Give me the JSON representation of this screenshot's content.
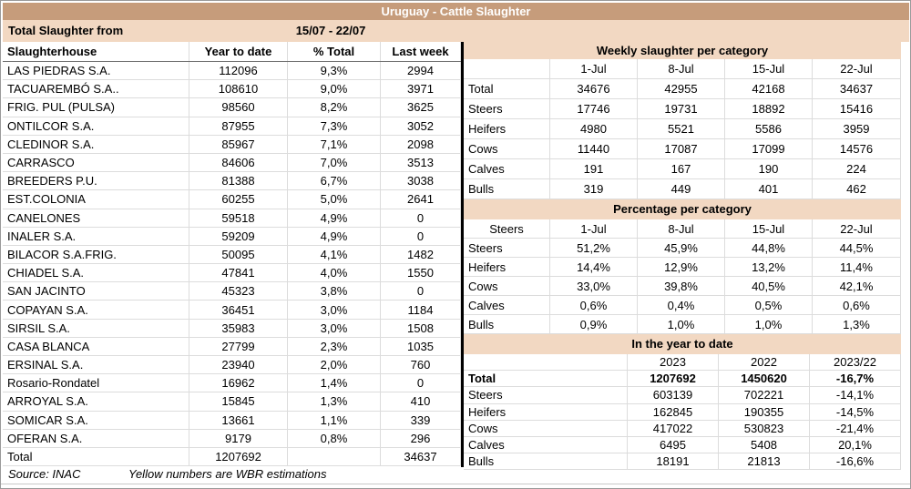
{
  "title": "Uruguay - Cattle Slaughter",
  "subheader": {
    "label": "Total Slaughter from",
    "range": "15/07 - 22/07"
  },
  "left_table": {
    "headers": [
      "Slaughterhouse",
      "Year to date",
      "% Total",
      "Last week"
    ],
    "rows": [
      [
        "LAS PIEDRAS S.A.",
        "112096",
        "9,3%",
        "2994"
      ],
      [
        "TACUAREMBÓ S.A..",
        "108610",
        "9,0%",
        "3971"
      ],
      [
        "FRIG. PUL (PULSA)",
        "98560",
        "8,2%",
        "3625"
      ],
      [
        "ONTILCOR S.A.",
        "87955",
        "7,3%",
        "3052"
      ],
      [
        "CLEDINOR S.A.",
        "85967",
        "7,1%",
        "2098"
      ],
      [
        "CARRASCO",
        "84606",
        "7,0%",
        "3513"
      ],
      [
        "BREEDERS P.U.",
        "81388",
        "6,7%",
        "3038"
      ],
      [
        "EST.COLONIA",
        "60255",
        "5,0%",
        "2641"
      ],
      [
        "CANELONES",
        "59518",
        "4,9%",
        "0"
      ],
      [
        "INALER S.A.",
        "59209",
        "4,9%",
        "0"
      ],
      [
        "BILACOR S.A.FRIG.",
        "50095",
        "4,1%",
        "1482"
      ],
      [
        "CHIADEL S.A.",
        "47841",
        "4,0%",
        "1550"
      ],
      [
        "SAN JACINTO",
        "45323",
        "3,8%",
        "0"
      ],
      [
        "COPAYAN S.A.",
        "36451",
        "3,0%",
        "1184"
      ],
      [
        "SIRSIL S.A.",
        "35983",
        "3,0%",
        "1508"
      ],
      [
        "CASA BLANCA",
        "27799",
        "2,3%",
        "1035"
      ],
      [
        "ERSINAL S.A.",
        "23940",
        "2,0%",
        "760"
      ],
      [
        "Rosario-Rondatel",
        "16962",
        "1,4%",
        "0"
      ],
      [
        "ARROYAL S.A.",
        "15845",
        "1,3%",
        "410"
      ],
      [
        "SOMICAR S.A.",
        "13661",
        "1,1%",
        "339"
      ],
      [
        "OFERAN S.A.",
        "9179",
        "0,8%",
        "296"
      ]
    ],
    "total_row": [
      "Total",
      "1207692",
      "",
      "34637"
    ]
  },
  "right": {
    "weekly": {
      "title": "Weekly slaughter per category",
      "columns": [
        "",
        "1-Jul",
        "8-Jul",
        "15-Jul",
        "22-Jul"
      ],
      "rows": [
        [
          "Total",
          "34676",
          "42955",
          "42168",
          "34637"
        ],
        [
          "Steers",
          "17746",
          "19731",
          "18892",
          "15416"
        ],
        [
          "Heifers",
          "4980",
          "5521",
          "5586",
          "3959"
        ],
        [
          "Cows",
          "11440",
          "17087",
          "17099",
          "14576"
        ],
        [
          "Calves",
          "191",
          "167",
          "190",
          "224"
        ],
        [
          "Bulls",
          "319",
          "449",
          "401",
          "462"
        ]
      ]
    },
    "percentage": {
      "title": "Percentage per category",
      "columns": [
        "Steers",
        "1-Jul",
        "8-Jul",
        "15-Jul",
        "22-Jul"
      ],
      "rows": [
        [
          "Steers",
          "51,2%",
          "45,9%",
          "44,8%",
          "44,5%"
        ],
        [
          "Heifers",
          "14,4%",
          "12,9%",
          "13,2%",
          "11,4%"
        ],
        [
          "Cows",
          "33,0%",
          "39,8%",
          "40,5%",
          "42,1%"
        ],
        [
          "Calves",
          "0,6%",
          "0,4%",
          "0,5%",
          "0,6%"
        ],
        [
          "Bulls",
          "0,9%",
          "1,0%",
          "1,0%",
          "1,3%"
        ]
      ]
    },
    "ytd": {
      "title": "In the year to date",
      "columns": [
        "",
        "2023",
        "2022",
        "2023/22"
      ],
      "rows": [
        [
          "Total",
          "1207692",
          "1450620",
          "-16,7%"
        ],
        [
          "Steers",
          "603139",
          "702221",
          "-14,1%"
        ],
        [
          "Heifers",
          "162845",
          "190355",
          "-14,5%"
        ],
        [
          "Cows",
          "417022",
          "530823",
          "-21,4%"
        ],
        [
          "Calves",
          "6495",
          "5408",
          "20,1%"
        ],
        [
          "Bulls",
          "18191",
          "21813",
          "-16,6%"
        ]
      ]
    }
  },
  "footer": {
    "source": "Source: INAC",
    "note": "Yellow numbers are WBR estimations"
  },
  "colors": {
    "header_bar": "#C69C7B",
    "section_band": "#F2D8C2",
    "grid": "#DCDCDC"
  }
}
